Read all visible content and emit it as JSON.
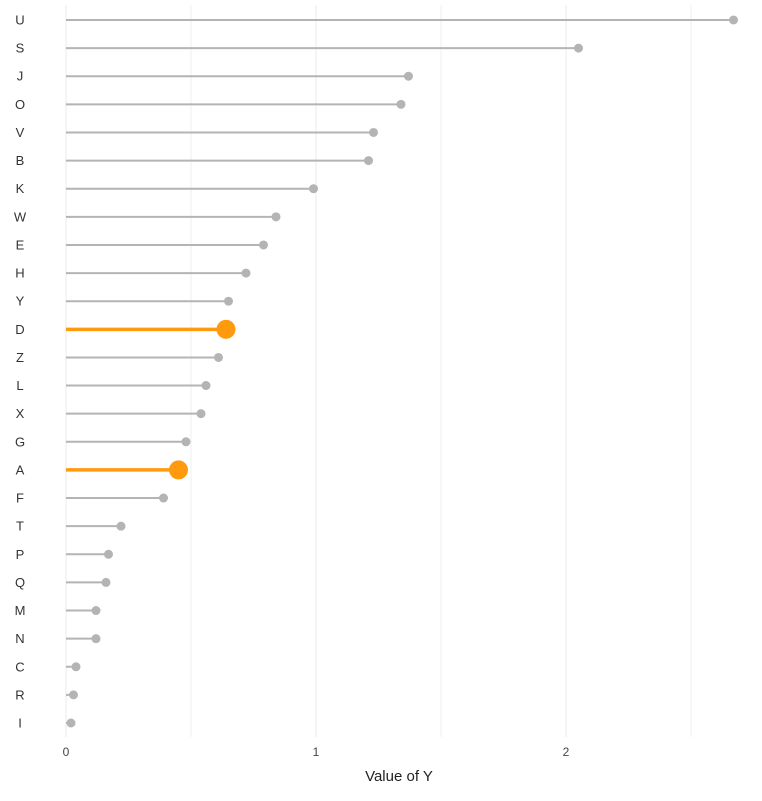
{
  "chart_data": {
    "type": "lollipop",
    "orientation": "horizontal",
    "title": "",
    "xlabel": "Value of Y",
    "ylabel": "",
    "xlim": [
      0,
      2.7
    ],
    "x_ticks": [
      0,
      1,
      2
    ],
    "x_tick_labels": [
      "0",
      "1",
      "2"
    ],
    "minor_gridlines": [
      0.5,
      1.5,
      2.5
    ],
    "grid": true,
    "colors": {
      "default": "#b4b4b4",
      "highlight": "#ff9a0e",
      "grid": "#ebebeb"
    },
    "categories": [
      "U",
      "S",
      "J",
      "O",
      "V",
      "B",
      "K",
      "W",
      "E",
      "H",
      "Y",
      "D",
      "Z",
      "L",
      "X",
      "G",
      "A",
      "F",
      "T",
      "P",
      "Q",
      "M",
      "N",
      "C",
      "R",
      "I"
    ],
    "values": [
      2.67,
      2.05,
      1.37,
      1.34,
      1.23,
      1.21,
      0.99,
      0.84,
      0.79,
      0.72,
      0.65,
      0.64,
      0.61,
      0.56,
      0.54,
      0.48,
      0.45,
      0.39,
      0.22,
      0.17,
      0.16,
      0.12,
      0.12,
      0.04,
      0.03,
      0.02
    ],
    "highlighted": [
      "D",
      "A"
    ]
  }
}
